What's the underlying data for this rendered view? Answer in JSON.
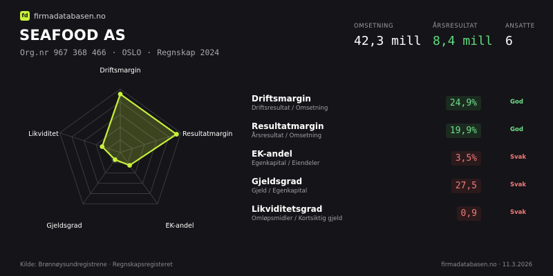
{
  "brand": {
    "logo": "fd",
    "name": "firmadatabasen.no"
  },
  "company": {
    "name": "SEAFOOD AS",
    "org_nr": "Org.nr 967 368 466",
    "separator": "·",
    "city": "OSLO",
    "accounts": "Regnskap 2024"
  },
  "kpis": [
    {
      "label": "OMSETNING",
      "value": "42,3 mill"
    },
    {
      "label": "ÅRSRESULTAT",
      "value": "8,4 mill"
    },
    {
      "label": "ANSATTE",
      "value": "6"
    }
  ],
  "radar": {
    "axes": [
      "Driftsmargin",
      "Resultatmargin",
      "EK-andel",
      "Gjeldsgrad",
      "Likviditet"
    ],
    "levels": [
      0.2,
      0.4,
      0.6,
      0.8,
      1.0
    ],
    "scores": [
      0.92,
      0.93,
      0.25,
      0.14,
      0.3
    ],
    "colors": {
      "fill": "#c8f03c",
      "stroke": "#c8f03c",
      "grid": "#3a3a42"
    }
  },
  "metrics": [
    {
      "title": "Driftsmargin",
      "subtitle": "Driftsresultat / Omsetning",
      "value": "24,9%",
      "status": "God",
      "kind": "good"
    },
    {
      "title": "Resultatmargin",
      "subtitle": "Årsresultat / Omsetning",
      "value": "19,9%",
      "status": "God",
      "kind": "good"
    },
    {
      "title": "EK-andel",
      "subtitle": "Egenkapital / Eiendeler",
      "value": "3,5%",
      "status": "Svak",
      "kind": "weak"
    },
    {
      "title": "Gjeldsgrad",
      "subtitle": "Gjeld / Egenkapital",
      "value": "27,5",
      "status": "Svak",
      "kind": "weak"
    },
    {
      "title": "Likviditetsgrad",
      "subtitle": "Omløpsmidler / Kortsiktig gjeld",
      "value": "0,9",
      "status": "Svak",
      "kind": "weak"
    }
  ],
  "footer": {
    "source": "Kilde: Brønnøysundregistrene · Regnskapsregisteret",
    "site_date": "firmadatabasen.no · 11.3.2026"
  }
}
